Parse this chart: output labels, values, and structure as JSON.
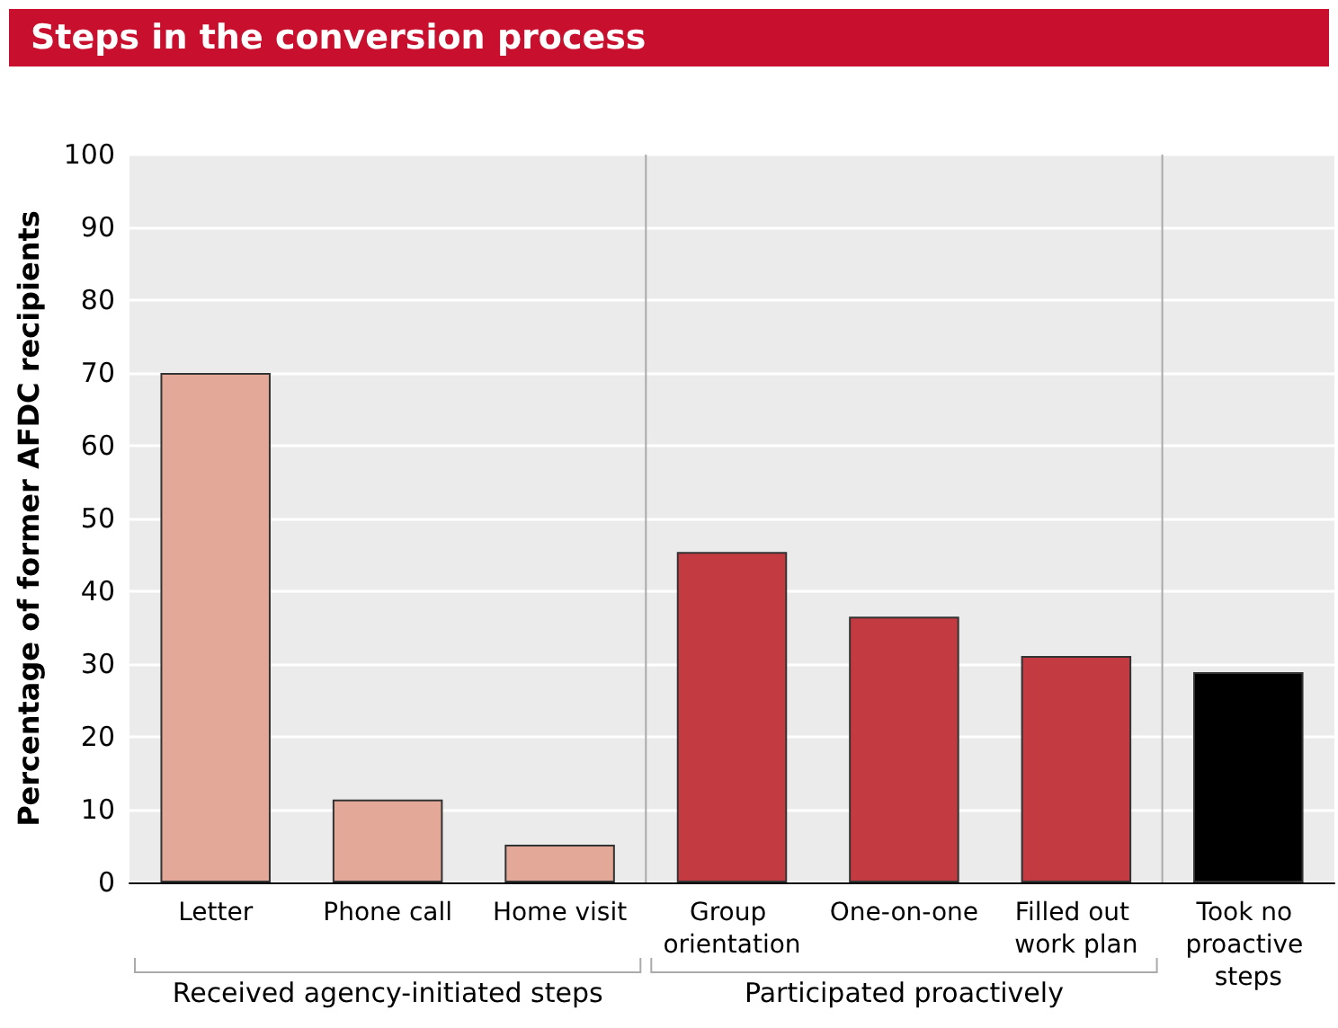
{
  "chart_data": {
    "type": "bar",
    "title": "Steps in the conversion process",
    "ylabel": "Percentage of former AFDC recipients",
    "categories": [
      "Letter",
      "Phone call",
      "Home visit",
      "Group orientation",
      "One-on-one",
      "Filled out work plan",
      "Took no proactive steps"
    ],
    "values": [
      70,
      11.4,
      5.2,
      45.4,
      36.5,
      31.1,
      28.9
    ],
    "colors": [
      "#e3a897",
      "#e3a897",
      "#e3a897",
      "#c33a41",
      "#c33a41",
      "#c33a41",
      "#000000"
    ],
    "ylim": [
      0,
      100
    ],
    "yticks": [
      0,
      10,
      20,
      30,
      40,
      50,
      60,
      70,
      80,
      90,
      100
    ],
    "grid": "y",
    "annotations": [
      "Received agency-initiated steps",
      "Participated proactively"
    ]
  }
}
